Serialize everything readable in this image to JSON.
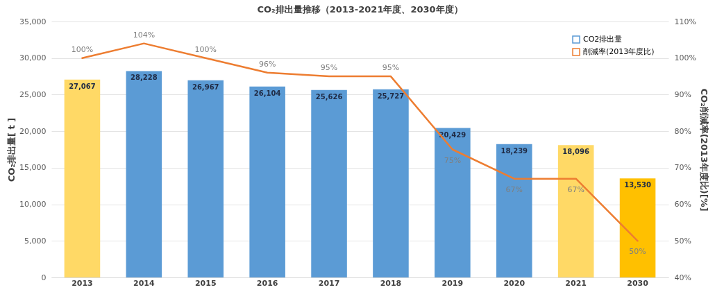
{
  "chart_data": {
    "type": "bar",
    "title": "CO₂排出量推移（2013-2021年度、2030年度）",
    "ylabel": "CO₂排出量[ t ]",
    "y2label": "CO₂削減率(2013年度比)[%]",
    "categories": [
      "2013",
      "2014",
      "2015",
      "2016",
      "2017",
      "2018",
      "2019",
      "2020",
      "2021",
      "2030"
    ],
    "series": [
      {
        "name": "CO2排出量",
        "color": "#5b9bd5",
        "colors": [
          "#ffd966",
          "#5b9bd5",
          "#5b9bd5",
          "#5b9bd5",
          "#5b9bd5",
          "#5b9bd5",
          "#5b9bd5",
          "#5b9bd5",
          "#ffd966",
          "#ffc000"
        ],
        "values": [
          27067,
          28228,
          26967,
          26104,
          25626,
          25727,
          20429,
          18239,
          18096,
          13530
        ],
        "value_labels": [
          "27,067",
          "28,228",
          "26,967",
          "26,104",
          "25,626",
          "25,727",
          "20,429",
          "18,239",
          "18,096",
          "13,530"
        ]
      },
      {
        "name": "削減率(2013年度比)",
        "type": "line",
        "axis": "y2",
        "color": "#ed7d31",
        "values": [
          100,
          104,
          100,
          96,
          95,
          95,
          75,
          67,
          67,
          50
        ],
        "value_labels": [
          "100%",
          "104%",
          "100%",
          "96%",
          "95%",
          "95%",
          "75%",
          "67%",
          "67%",
          "50%"
        ]
      }
    ],
    "ylim": [
      0,
      35000
    ],
    "yticks": [
      0,
      {
        "value": 5000,
        "label": "5,000"
      },
      {
        "value": 10000,
        "label": "10,000"
      },
      {
        "value": 15000,
        "label": "15,000"
      },
      {
        "value": 20000,
        "label": "20,000"
      },
      {
        "value": 25000,
        "label": "25,000"
      },
      {
        "value": 30000,
        "label": "30,000"
      },
      {
        "value": 35000,
        "label": "35,000"
      }
    ],
    "y2lim": [
      40,
      110
    ],
    "y2ticks": [
      {
        "value": 40,
        "label": "40%"
      },
      {
        "value": 50,
        "label": "50%"
      },
      {
        "value": 60,
        "label": "60%"
      },
      {
        "value": 70,
        "label": "70%"
      },
      {
        "value": 80,
        "label": "80%"
      },
      {
        "value": 90,
        "label": "90%"
      },
      {
        "value": 100,
        "label": "100%"
      },
      {
        "value": 110,
        "label": "110%"
      }
    ],
    "grid": "y",
    "legend": "top right"
  }
}
